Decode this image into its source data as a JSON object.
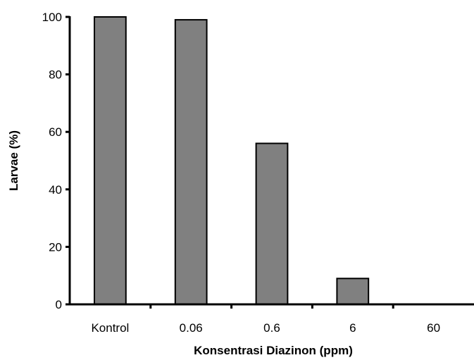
{
  "chart_data": {
    "type": "bar",
    "categories": [
      "Kontrol",
      "0.06",
      "0.6",
      "6",
      "60"
    ],
    "values": [
      100,
      99,
      56,
      9,
      0
    ],
    "xlabel": "Konsentrasi Diazinon (ppm)",
    "ylabel": "Larvae (%)",
    "ylim": [
      0,
      100
    ],
    "yticks": [
      0,
      20,
      40,
      60,
      80,
      100
    ],
    "grid": false,
    "bar_color": "#808080",
    "bar_edge_color": "#000000"
  }
}
